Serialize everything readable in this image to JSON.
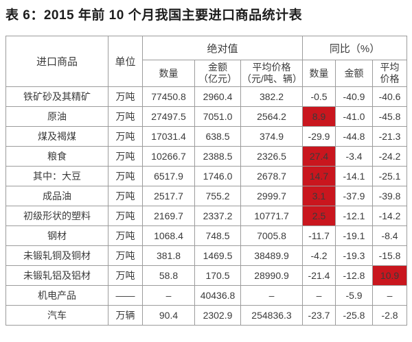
{
  "title": "表 6：2015 年前 10 个月我国主要进口商品统计表",
  "colors": {
    "highlight_red": "#c9161e",
    "highlight_text": "#ffffff",
    "border_gray": "#9b9b9b",
    "text": "#3a3a3a"
  },
  "table": {
    "header": {
      "commodity": "进口商品",
      "unit": "单位",
      "absolute_group": "绝对值",
      "yoy_group": "同比（%）",
      "abs_quantity": "数量",
      "abs_amount": "金额\n（亿元）",
      "abs_price": "平均价格\n（元/吨、辆）",
      "yoy_quantity": "数量",
      "yoy_amount": "金额",
      "yoy_price": "平均\n价格"
    },
    "rows": [
      {
        "name": "铁矿砂及其精矿",
        "unit": "万吨",
        "qty": "77450.8",
        "amount": "2960.4",
        "price": "382.2",
        "yoy_qty": "-0.5",
        "yoy_amount": "-40.9",
        "yoy_price": "-40.6"
      },
      {
        "name": "原油",
        "unit": "万吨",
        "qty": "27497.5",
        "amount": "7051.0",
        "price": "2564.2",
        "yoy_qty": "8.9",
        "yoy_amount": "-41.0",
        "yoy_price": "-45.8"
      },
      {
        "name": "煤及褐煤",
        "unit": "万吨",
        "qty": "17031.4",
        "amount": "638.5",
        "price": "374.9",
        "yoy_qty": "-29.9",
        "yoy_amount": "-44.8",
        "yoy_price": "-21.3"
      },
      {
        "name": "粮食",
        "unit": "万吨",
        "qty": "10266.7",
        "amount": "2388.5",
        "price": "2326.5",
        "yoy_qty": "27.4",
        "yoy_amount": "-3.4",
        "yoy_price": "-24.2"
      },
      {
        "name": "其中：大豆",
        "unit": "万吨",
        "qty": "6517.9",
        "amount": "1746.0",
        "price": "2678.7",
        "yoy_qty": "14.7",
        "yoy_amount": "-14.1",
        "yoy_price": "-25.1"
      },
      {
        "name": "成品油",
        "unit": "万吨",
        "qty": "2517.7",
        "amount": "755.2",
        "price": "2999.7",
        "yoy_qty": "3.1",
        "yoy_amount": "-37.9",
        "yoy_price": "-39.8"
      },
      {
        "name": "初级形状的塑料",
        "unit": "万吨",
        "qty": "2169.7",
        "amount": "2337.2",
        "price": "10771.7",
        "yoy_qty": "2.5",
        "yoy_amount": "-12.1",
        "yoy_price": "-14.2"
      },
      {
        "name": "钢材",
        "unit": "万吨",
        "qty": "1068.4",
        "amount": "748.5",
        "price": "7005.8",
        "yoy_qty": "-11.7",
        "yoy_amount": "-19.1",
        "yoy_price": "-8.4"
      },
      {
        "name": "未锻轧铜及铜材",
        "unit": "万吨",
        "qty": "381.8",
        "amount": "1469.5",
        "price": "38489.9",
        "yoy_qty": "-4.2",
        "yoy_amount": "-19.3",
        "yoy_price": "-15.8"
      },
      {
        "name": "未锻轧铝及铝材",
        "unit": "万吨",
        "qty": "58.8",
        "amount": "170.5",
        "price": "28990.9",
        "yoy_qty": "-21.4",
        "yoy_amount": "-12.8",
        "yoy_price": "10.9"
      },
      {
        "name": "机电产品",
        "unit": "——",
        "qty": "–",
        "amount": "40436.8",
        "price": "–",
        "yoy_qty": "–",
        "yoy_amount": "-5.9",
        "yoy_price": "–"
      },
      {
        "name": "汽车",
        "unit": "万辆",
        "qty": "90.4",
        "amount": "2302.9",
        "price": "254836.3",
        "yoy_qty": "-23.7",
        "yoy_amount": "-25.8",
        "yoy_price": "-2.8"
      }
    ]
  }
}
